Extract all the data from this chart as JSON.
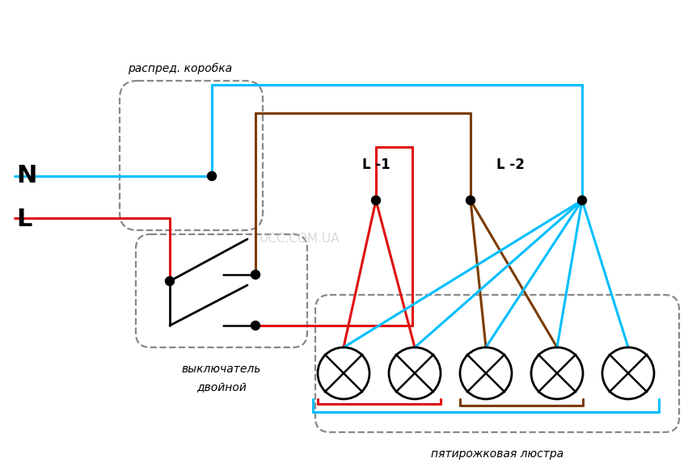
{
  "bg_color": "#ffffff",
  "watermark": "UCC.COM.UA",
  "colors": {
    "cyan": "#00bfff",
    "red": "#e01010",
    "brown": "#7B3B00",
    "black": "#000000",
    "dashed": "#888888"
  },
  "labels": {
    "N": "N",
    "L": "L",
    "L1": "L -1",
    "L2": "L -2",
    "box": "распред. коробка",
    "sw1": "выключатель",
    "sw2": "двойной",
    "chandelier": "пятирожковая люстра"
  }
}
